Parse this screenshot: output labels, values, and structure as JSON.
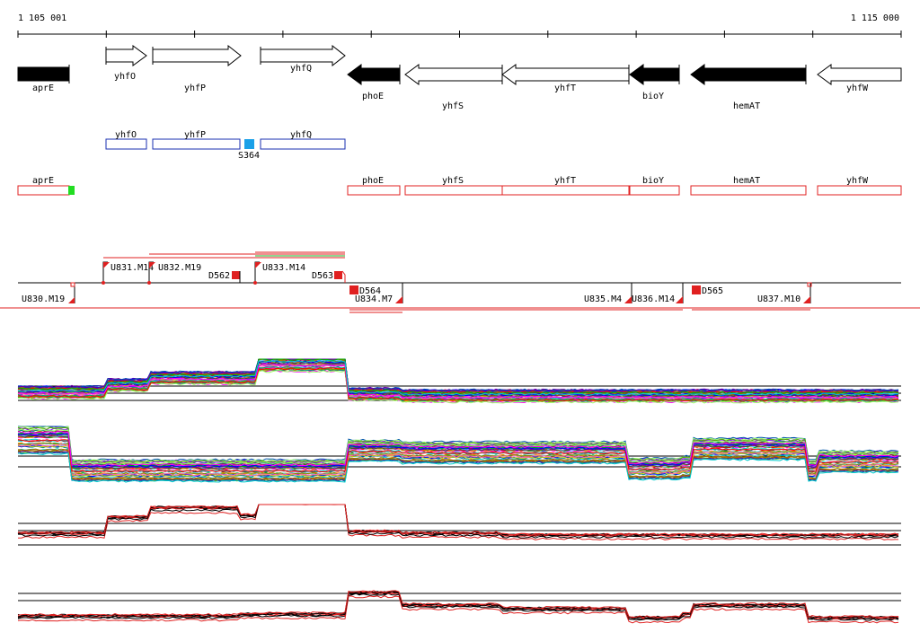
{
  "coords": {
    "start": "1 105 001",
    "end": "1 115 000"
  },
  "colors": {
    "gene_fill": "#000000",
    "gene_outline": "#000000",
    "blue_box": "#1a2fb0",
    "blue_marker": "#1aa0e8",
    "red_box": "#e02020",
    "green_marker": "#22dd22",
    "red_line": "#e02020",
    "green_line": "#22aa22"
  },
  "genes": [
    {
      "label": "aprE",
      "dir": "left",
      "filled": true
    },
    {
      "label": "yhfO",
      "dir": "right",
      "filled": false
    },
    {
      "label": "yhfP",
      "dir": "right",
      "filled": false
    },
    {
      "label": "yhfQ",
      "dir": "right",
      "filled": false
    },
    {
      "label": "phoE",
      "dir": "left",
      "filled": true
    },
    {
      "label": "yhfS",
      "dir": "left",
      "filled": false
    },
    {
      "label": "yhfT",
      "dir": "left",
      "filled": false
    },
    {
      "label": "bioY",
      "dir": "left",
      "filled": true
    },
    {
      "label": "hemAT",
      "dir": "left",
      "filled": true
    },
    {
      "label": "yhfW",
      "dir": "left",
      "filled": false
    }
  ],
  "blue_track": [
    {
      "label": "yhfO"
    },
    {
      "label": "yhfP"
    },
    {
      "label": "yhfQ"
    }
  ],
  "blue_marker_label": "S364",
  "red_track": [
    {
      "label": "aprE"
    },
    {
      "label": "phoE"
    },
    {
      "label": "yhfS"
    },
    {
      "label": "yhfT"
    },
    {
      "label": "bioY"
    },
    {
      "label": "hemAT"
    },
    {
      "label": "yhfW"
    }
  ],
  "transcripts_top": [
    {
      "label": "U831.M14"
    },
    {
      "label": "U832.M19"
    },
    {
      "label": "D562"
    },
    {
      "label": "U833.M14"
    },
    {
      "label": "D563"
    }
  ],
  "transcripts_bottom": [
    {
      "label": "U830.M19"
    },
    {
      "label": "D564"
    },
    {
      "label": "U834.M7"
    },
    {
      "label": "U835.M4"
    },
    {
      "label": "U836.M14"
    },
    {
      "label": "D565"
    },
    {
      "label": "U837.M10"
    }
  ],
  "panels": [
    {
      "name": "panel-1"
    },
    {
      "name": "panel-2"
    },
    {
      "name": "panel-3"
    },
    {
      "name": "panel-4"
    }
  ]
}
